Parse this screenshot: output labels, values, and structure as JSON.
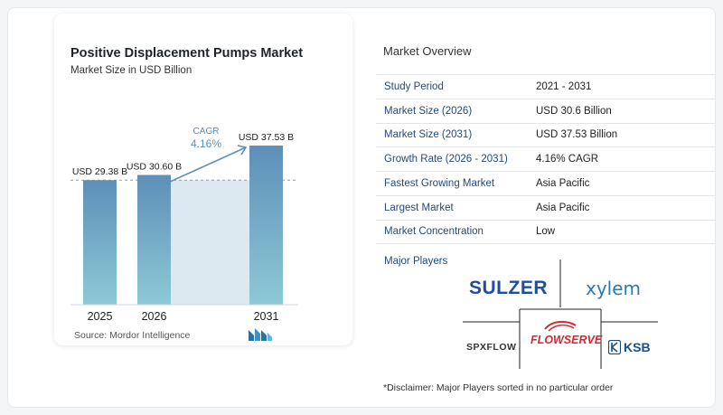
{
  "chart": {
    "title": "Positive Displacement Pumps Market",
    "subtitle": "Market Size in USD Billion",
    "source": "Source:  Mordor Intelligence",
    "cagr_label": "CAGR",
    "cagr_value": "4.16%"
  },
  "chart_data": {
    "type": "bar",
    "title": "Positive Displacement Pumps Market",
    "subtitle": "Market Size in USD Billion",
    "categories": [
      "2025",
      "2026",
      "2031"
    ],
    "values": [
      29.38,
      30.6,
      37.53
    ],
    "data_labels": [
      "USD 29.38 B",
      "USD 30.60 B",
      "USD 37.53 B"
    ],
    "annotation": {
      "label": "CAGR",
      "value": "4.16%"
    },
    "ylim": [
      0,
      40
    ],
    "grid": false,
    "colors": {
      "bar": "#5d8fb8",
      "bar_bottom": "#8ec9d6",
      "band": "#dde9f0"
    }
  },
  "overview": {
    "title": "Market Overview",
    "rows": [
      {
        "label": "Study Period",
        "value": "2021 - 2031"
      },
      {
        "label": "Market Size (2026)",
        "value": "USD 30.6 Billion"
      },
      {
        "label": "Market Size (2031)",
        "value": "USD 37.53 Billion"
      },
      {
        "label": "Growth Rate (2026 - 2031)",
        "value": "4.16% CAGR"
      },
      {
        "label": "Fastest Growing Market",
        "value": "Asia Pacific"
      },
      {
        "label": "Largest Market",
        "value": "Asia Pacific"
      },
      {
        "label": "Market Concentration",
        "value": "Low"
      }
    ]
  },
  "players": {
    "title": "Major Players",
    "logos": {
      "sulzer": "SULZER",
      "xylem": "xylem",
      "spxflow": "SPXFLOW",
      "flowserve": "FLOWSERVE",
      "ksb": "KSB"
    }
  },
  "disclaimer": "*Disclaimer: Major Players sorted in no particular order",
  "colors": {
    "accent_label": "#27497a",
    "sulzer": "#1f4e9c",
    "xylem": "#2a7ab0",
    "flowserve": "#d7282f",
    "ksb": "#1a4f86"
  }
}
